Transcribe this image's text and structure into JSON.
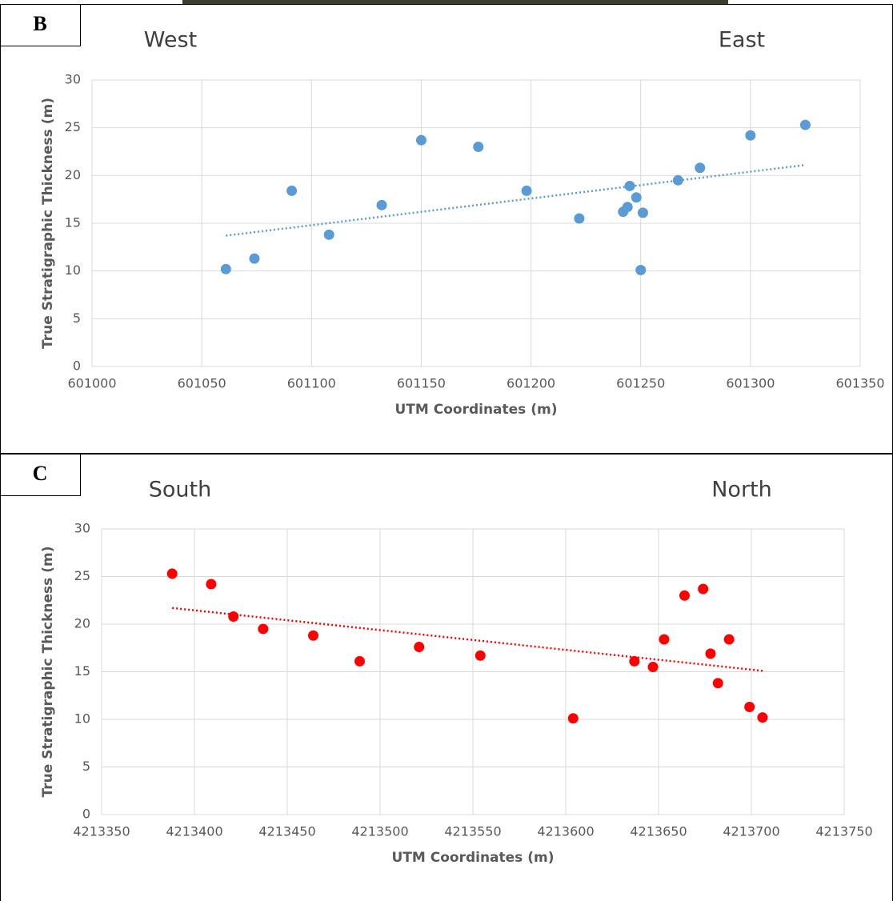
{
  "chart_data": [
    {
      "type": "scatter",
      "panel_label": "B",
      "left_label": "West",
      "right_label": "East",
      "xlabel": "UTM Coordinates (m)",
      "ylabel": "True Stratigraphic Thickness (m)",
      "x": [
        601061,
        601074,
        601091,
        601108,
        601132,
        601150,
        601176,
        601198,
        601222,
        601242,
        601244,
        601245,
        601248,
        601251,
        601250,
        601267,
        601277,
        601300,
        601325
      ],
      "values": [
        10.2,
        11.3,
        18.4,
        13.8,
        16.9,
        23.7,
        23.0,
        18.4,
        15.5,
        16.2,
        16.7,
        18.9,
        17.7,
        16.1,
        10.1,
        19.5,
        20.8,
        24.2,
        25.3
      ],
      "color": "#5b9bd5",
      "trendline": {
        "x": [
          601061,
          601325
        ],
        "y": [
          13.7,
          21.1
        ]
      },
      "xlim": [
        601000,
        601350
      ],
      "xticks": [
        601000,
        601050,
        601100,
        601150,
        601200,
        601250,
        601300,
        601350
      ],
      "ylim": [
        0,
        30
      ],
      "yticks": [
        0,
        5,
        10,
        15,
        20,
        25,
        30
      ],
      "grid": true
    },
    {
      "type": "scatter",
      "panel_label": "C",
      "left_label": "South",
      "right_label": "North",
      "xlabel": "UTM Coordinates (m)",
      "ylabel": "True Stratigraphic Thickness (m)",
      "x": [
        4213388,
        4213409,
        4213421,
        4213437,
        4213464,
        4213489,
        4213521,
        4213554,
        4213604,
        4213637,
        4213647,
        4213653,
        4213664,
        4213674,
        4213678,
        4213682,
        4213688,
        4213699,
        4213706
      ],
      "values": [
        25.3,
        24.2,
        20.8,
        19.5,
        18.8,
        16.1,
        17.6,
        16.7,
        10.1,
        16.1,
        15.5,
        18.4,
        23.0,
        23.7,
        16.9,
        13.8,
        18.4,
        11.3,
        10.2
      ],
      "color": "#ff0000",
      "trendline": {
        "x": [
          4213388,
          4213706
        ],
        "y": [
          21.7,
          15.1
        ]
      },
      "xlim": [
        4213350,
        4213750
      ],
      "xticks": [
        4213350,
        4213400,
        4213450,
        4213500,
        4213550,
        4213600,
        4213650,
        4213700,
        4213750
      ],
      "ylim": [
        0,
        30
      ],
      "yticks": [
        0,
        5,
        10,
        15,
        20,
        25,
        30
      ],
      "grid": true
    }
  ]
}
